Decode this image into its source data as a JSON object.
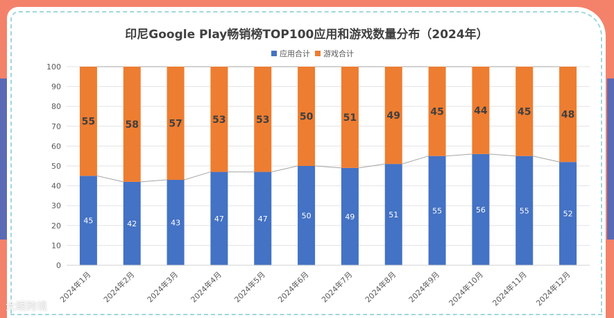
{
  "chart_data": {
    "type": "bar",
    "stacked": true,
    "title": "印尼Google Play畅销榜TOP100应用和游戏数量分布（2024年）",
    "categories": [
      "2024年1月",
      "2024年2月",
      "2024年3月",
      "2024年4月",
      "2024年5月",
      "2024年6月",
      "2024年7月",
      "2024年8月",
      "2024年9月",
      "2024年10月",
      "2024年11月",
      "2024年12月"
    ],
    "series": [
      {
        "name": "应用合计",
        "color": "#4472c4",
        "values": [
          45,
          42,
          43,
          47,
          47,
          50,
          49,
          51,
          55,
          56,
          55,
          52
        ]
      },
      {
        "name": "游戏合计",
        "color": "#ed7d31",
        "values": [
          55,
          58,
          57,
          53,
          53,
          50,
          51,
          49,
          45,
          44,
          45,
          48
        ]
      }
    ],
    "ylim": [
      0,
      100
    ],
    "yticks": [
      "0",
      "10",
      "20",
      "30",
      "40",
      "50",
      "60",
      "70",
      "80",
      "90",
      "100"
    ],
    "grid": true,
    "legend_position": "top",
    "series_line_color": "#a5a5a5"
  },
  "watermark": "大眼跨境"
}
